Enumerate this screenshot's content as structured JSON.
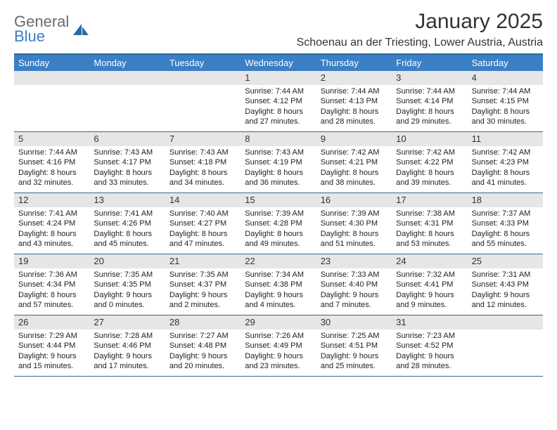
{
  "logo": {
    "text1": "General",
    "text2": "Blue",
    "icon_color": "#2c6aa0"
  },
  "title": "January 2025",
  "location": "Schoenau an der Triesting, Lower Austria, Austria",
  "colors": {
    "header_bg": "#3b7fc4",
    "header_text": "#ffffff",
    "border": "#2c6aa0",
    "daynum_bg": "#e6e6e6",
    "text": "#222222"
  },
  "day_names": [
    "Sunday",
    "Monday",
    "Tuesday",
    "Wednesday",
    "Thursday",
    "Friday",
    "Saturday"
  ],
  "weeks": [
    [
      null,
      null,
      null,
      {
        "n": "1",
        "sr": "7:44 AM",
        "ss": "4:12 PM",
        "dl": "8 hours and 27 minutes."
      },
      {
        "n": "2",
        "sr": "7:44 AM",
        "ss": "4:13 PM",
        "dl": "8 hours and 28 minutes."
      },
      {
        "n": "3",
        "sr": "7:44 AM",
        "ss": "4:14 PM",
        "dl": "8 hours and 29 minutes."
      },
      {
        "n": "4",
        "sr": "7:44 AM",
        "ss": "4:15 PM",
        "dl": "8 hours and 30 minutes."
      }
    ],
    [
      {
        "n": "5",
        "sr": "7:44 AM",
        "ss": "4:16 PM",
        "dl": "8 hours and 32 minutes."
      },
      {
        "n": "6",
        "sr": "7:43 AM",
        "ss": "4:17 PM",
        "dl": "8 hours and 33 minutes."
      },
      {
        "n": "7",
        "sr": "7:43 AM",
        "ss": "4:18 PM",
        "dl": "8 hours and 34 minutes."
      },
      {
        "n": "8",
        "sr": "7:43 AM",
        "ss": "4:19 PM",
        "dl": "8 hours and 36 minutes."
      },
      {
        "n": "9",
        "sr": "7:42 AM",
        "ss": "4:21 PM",
        "dl": "8 hours and 38 minutes."
      },
      {
        "n": "10",
        "sr": "7:42 AM",
        "ss": "4:22 PM",
        "dl": "8 hours and 39 minutes."
      },
      {
        "n": "11",
        "sr": "7:42 AM",
        "ss": "4:23 PM",
        "dl": "8 hours and 41 minutes."
      }
    ],
    [
      {
        "n": "12",
        "sr": "7:41 AM",
        "ss": "4:24 PM",
        "dl": "8 hours and 43 minutes."
      },
      {
        "n": "13",
        "sr": "7:41 AM",
        "ss": "4:26 PM",
        "dl": "8 hours and 45 minutes."
      },
      {
        "n": "14",
        "sr": "7:40 AM",
        "ss": "4:27 PM",
        "dl": "8 hours and 47 minutes."
      },
      {
        "n": "15",
        "sr": "7:39 AM",
        "ss": "4:28 PM",
        "dl": "8 hours and 49 minutes."
      },
      {
        "n": "16",
        "sr": "7:39 AM",
        "ss": "4:30 PM",
        "dl": "8 hours and 51 minutes."
      },
      {
        "n": "17",
        "sr": "7:38 AM",
        "ss": "4:31 PM",
        "dl": "8 hours and 53 minutes."
      },
      {
        "n": "18",
        "sr": "7:37 AM",
        "ss": "4:33 PM",
        "dl": "8 hours and 55 minutes."
      }
    ],
    [
      {
        "n": "19",
        "sr": "7:36 AM",
        "ss": "4:34 PM",
        "dl": "8 hours and 57 minutes."
      },
      {
        "n": "20",
        "sr": "7:35 AM",
        "ss": "4:35 PM",
        "dl": "9 hours and 0 minutes."
      },
      {
        "n": "21",
        "sr": "7:35 AM",
        "ss": "4:37 PM",
        "dl": "9 hours and 2 minutes."
      },
      {
        "n": "22",
        "sr": "7:34 AM",
        "ss": "4:38 PM",
        "dl": "9 hours and 4 minutes."
      },
      {
        "n": "23",
        "sr": "7:33 AM",
        "ss": "4:40 PM",
        "dl": "9 hours and 7 minutes."
      },
      {
        "n": "24",
        "sr": "7:32 AM",
        "ss": "4:41 PM",
        "dl": "9 hours and 9 minutes."
      },
      {
        "n": "25",
        "sr": "7:31 AM",
        "ss": "4:43 PM",
        "dl": "9 hours and 12 minutes."
      }
    ],
    [
      {
        "n": "26",
        "sr": "7:29 AM",
        "ss": "4:44 PM",
        "dl": "9 hours and 15 minutes."
      },
      {
        "n": "27",
        "sr": "7:28 AM",
        "ss": "4:46 PM",
        "dl": "9 hours and 17 minutes."
      },
      {
        "n": "28",
        "sr": "7:27 AM",
        "ss": "4:48 PM",
        "dl": "9 hours and 20 minutes."
      },
      {
        "n": "29",
        "sr": "7:26 AM",
        "ss": "4:49 PM",
        "dl": "9 hours and 23 minutes."
      },
      {
        "n": "30",
        "sr": "7:25 AM",
        "ss": "4:51 PM",
        "dl": "9 hours and 25 minutes."
      },
      {
        "n": "31",
        "sr": "7:23 AM",
        "ss": "4:52 PM",
        "dl": "9 hours and 28 minutes."
      },
      null
    ]
  ],
  "labels": {
    "sunrise": "Sunrise:",
    "sunset": "Sunset:",
    "daylight": "Daylight:"
  }
}
